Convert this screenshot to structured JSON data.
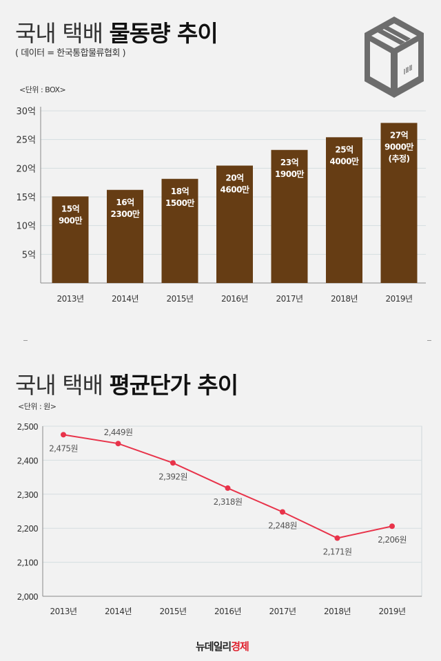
{
  "header": {
    "title_light": "국내 택배",
    "title_bold": "물동량 추이",
    "source": "( 데이터 = 한국통합물류협회 )",
    "icon": "package-box-icon"
  },
  "section2": {
    "title_light": "국내 택배",
    "title_bold": "평균단가 추이"
  },
  "footer": {
    "logo_black": "뉴데일리",
    "logo_red": "경제"
  },
  "colors": {
    "bar": "#663d14",
    "line": "#e8334a",
    "logo_red": "#e0222f"
  },
  "chart_data": [
    {
      "type": "bar",
      "unit_label": "<단위 : BOX>",
      "categories": [
        "2013년",
        "2014년",
        "2015년",
        "2016년",
        "2017년",
        "2018년",
        "2019년"
      ],
      "values": [
        15.09,
        16.23,
        18.15,
        20.46,
        23.19,
        25.4,
        27.9
      ],
      "value_unit": "억",
      "data_labels": [
        [
          "15억",
          "900만"
        ],
        [
          "16억",
          "2300만"
        ],
        [
          "18억",
          "1500만"
        ],
        [
          "20억",
          "4600만"
        ],
        [
          "23억",
          "1900만"
        ],
        [
          "25억",
          "4000만"
        ],
        [
          "27억",
          "9000만",
          "(추정)"
        ]
      ],
      "y_ticks": [
        5,
        10,
        15,
        20,
        25,
        30
      ],
      "y_tick_labels": [
        "5억",
        "10억",
        "15억",
        "20억",
        "25억",
        "30억"
      ],
      "ylim": [
        0,
        30
      ],
      "grid": true
    },
    {
      "type": "line",
      "unit_label": "<단위 : 원>",
      "categories": [
        "2013년",
        "2014년",
        "2015년",
        "2016년",
        "2017년",
        "2018년",
        "2019년"
      ],
      "values": [
        2475,
        2449,
        2392,
        2318,
        2248,
        2171,
        2206
      ],
      "data_labels": [
        "2,475원",
        "2,449원",
        "2,392원",
        "2,318원",
        "2,248원",
        "2,171원",
        "2,206원"
      ],
      "y_ticks": [
        2000,
        2100,
        2200,
        2300,
        2400,
        2500
      ],
      "y_tick_labels": [
        "2,000",
        "2,100",
        "2,200",
        "2,300",
        "2,400",
        "2,500"
      ],
      "ylim": [
        2000,
        2500
      ],
      "grid": true
    }
  ]
}
